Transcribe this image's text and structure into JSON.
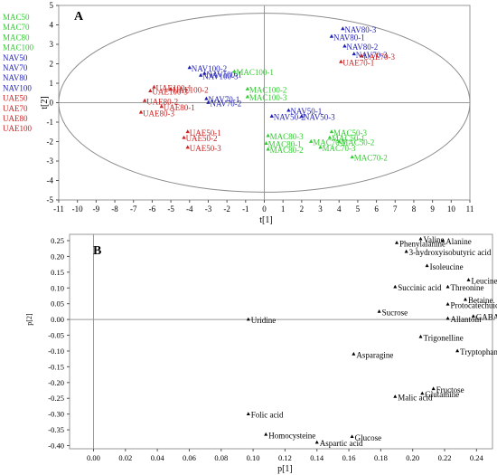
{
  "chart_data": [
    {
      "panel": "A",
      "type": "scatter",
      "xlabel": "t[1]",
      "ylabel": "t[2]",
      "xlim": [
        -11,
        11
      ],
      "ylim": [
        -5,
        5
      ],
      "xticks": [
        -11,
        -10,
        -9,
        -8,
        -7,
        -6,
        -5,
        -4,
        -3,
        -2,
        -1,
        0,
        1,
        2,
        3,
        4,
        5,
        6,
        7,
        8,
        9,
        10,
        11
      ],
      "yticks": [
        -5,
        -4,
        -3,
        -2,
        -1,
        0,
        1,
        2,
        3,
        4,
        5
      ],
      "ellipse": {
        "rx": 11,
        "ry": 4.6
      },
      "legend": [
        {
          "label": "MAC50",
          "color": "#33cc33"
        },
        {
          "label": "MAC70",
          "color": "#33cc33"
        },
        {
          "label": "MAC80",
          "color": "#33cc33"
        },
        {
          "label": "MAC100",
          "color": "#33cc33"
        },
        {
          "label": "NAV50",
          "color": "#1f1fb4"
        },
        {
          "label": "NAV70",
          "color": "#1f1fb4"
        },
        {
          "label": "NAV80",
          "color": "#1f1fb4"
        },
        {
          "label": "NAV100",
          "color": "#1f1fb4"
        },
        {
          "label": "UAE50",
          "color": "#cc2222"
        },
        {
          "label": "UAE70",
          "color": "#cc2222"
        },
        {
          "label": "UAE80",
          "color": "#cc2222"
        },
        {
          "label": "UAE100",
          "color": "#cc2222"
        }
      ],
      "points": [
        {
          "label": "NAV80-3",
          "x": 4.2,
          "y": 3.8,
          "color": "#1f1fb4"
        },
        {
          "label": "NAV80-1",
          "x": 3.6,
          "y": 3.4,
          "color": "#1f1fb4"
        },
        {
          "label": "NAV80-2",
          "x": 4.3,
          "y": 2.9,
          "color": "#1f1fb4"
        },
        {
          "label": "NAV70-3",
          "x": 4.8,
          "y": 2.5,
          "color": "#1f1fb4"
        },
        {
          "label": "UAE70-3",
          "x": 5.2,
          "y": 2.4,
          "color": "#cc2222"
        },
        {
          "label": "UAE70-1",
          "x": 4.1,
          "y": 2.1,
          "color": "#cc2222"
        },
        {
          "label": "NAV100-2",
          "x": -4.0,
          "y": 1.8,
          "color": "#1f1fb4"
        },
        {
          "label": "NAV100-1",
          "x": -3.2,
          "y": 1.5,
          "color": "#1f1fb4"
        },
        {
          "label": "NAV100-3",
          "x": -3.4,
          "y": 1.4,
          "color": "#1f1fb4"
        },
        {
          "label": "MAC100-1",
          "x": -1.6,
          "y": 1.6,
          "color": "#33cc33"
        },
        {
          "label": "UAE100-1",
          "x": -5.9,
          "y": 0.8,
          "color": "#cc2222"
        },
        {
          "label": "UAE100-3",
          "x": -6.1,
          "y": 0.6,
          "color": "#cc2222"
        },
        {
          "label": "UAE100-2",
          "x": -5.0,
          "y": 0.7,
          "color": "#cc2222"
        },
        {
          "label": "MAC100-2",
          "x": -0.9,
          "y": 0.7,
          "color": "#33cc33"
        },
        {
          "label": "MAC100-3",
          "x": -0.9,
          "y": 0.3,
          "color": "#33cc33"
        },
        {
          "label": "NAV70-1",
          "x": -3.1,
          "y": 0.2,
          "color": "#1f1fb4"
        },
        {
          "label": "NAV70-2",
          "x": -3.0,
          "y": 0.0,
          "color": "#1f1fb4"
        },
        {
          "label": "UAE80-2",
          "x": -6.4,
          "y": 0.1,
          "color": "#cc2222"
        },
        {
          "label": "UAE80-1",
          "x": -5.5,
          "y": -0.2,
          "color": "#cc2222"
        },
        {
          "label": "UAE80-3",
          "x": -6.6,
          "y": -0.5,
          "color": "#cc2222"
        },
        {
          "label": "NAV50-1",
          "x": 1.3,
          "y": -0.4,
          "color": "#1f1fb4"
        },
        {
          "label": "NAV50-2",
          "x": 0.4,
          "y": -0.7,
          "color": "#1f1fb4"
        },
        {
          "label": "NAV50-3",
          "x": 2.0,
          "y": -0.7,
          "color": "#1f1fb4"
        },
        {
          "label": "UAE50-1",
          "x": -4.1,
          "y": -1.5,
          "color": "#cc2222"
        },
        {
          "label": "UAE50-2",
          "x": -4.3,
          "y": -1.8,
          "color": "#cc2222"
        },
        {
          "label": "UAE50-3",
          "x": -4.1,
          "y": -2.3,
          "color": "#cc2222"
        },
        {
          "label": "MAC50-3",
          "x": 3.6,
          "y": -1.5,
          "color": "#33cc33"
        },
        {
          "label": "MAC50-1",
          "x": 3.5,
          "y": -1.8,
          "color": "#33cc33"
        },
        {
          "label": "MAC50-2",
          "x": 4.0,
          "y": -2.0,
          "color": "#33cc33"
        },
        {
          "label": "MAC80-3",
          "x": 0.2,
          "y": -1.7,
          "color": "#33cc33"
        },
        {
          "label": "MAC80-1",
          "x": 0.1,
          "y": -2.1,
          "color": "#33cc33"
        },
        {
          "label": "MAC80-2",
          "x": 0.2,
          "y": -2.4,
          "color": "#33cc33"
        },
        {
          "label": "MAC70-1",
          "x": 2.5,
          "y": -2.0,
          "color": "#33cc33"
        },
        {
          "label": "MAC70-3",
          "x": 3.0,
          "y": -2.3,
          "color": "#33cc33"
        },
        {
          "label": "MAC70-2",
          "x": 4.7,
          "y": -2.8,
          "color": "#33cc33"
        }
      ]
    },
    {
      "panel": "B",
      "type": "scatter",
      "xlabel": "p[1]",
      "ylabel": "p[2]",
      "xlim": [
        -0.015,
        0.25
      ],
      "ylim": [
        -0.41,
        0.27
      ],
      "xticks": [
        "0.00",
        "0.02",
        "0.04",
        "0.06",
        "0.08",
        "0.10",
        "0.12",
        "0.14",
        "0.16",
        "0.18",
        "0.20",
        "0.22",
        "0.24"
      ],
      "yticks": [
        "0.25",
        "0.20",
        "0.15",
        "0.10",
        "0.05",
        "0.00",
        "-0.05",
        "-0.10",
        "-0.15",
        "-0.20",
        "-0.25",
        "-0.30",
        "-0.35",
        "-0.40"
      ],
      "points": [
        {
          "label": "Valine",
          "x": 0.205,
          "y": 0.255
        },
        {
          "label": "Alanine",
          "x": 0.219,
          "y": 0.25
        },
        {
          "label": "Phenylalanine",
          "x": 0.19,
          "y": 0.243
        },
        {
          "label": "3-hydroxyisobutyric acid",
          "x": 0.196,
          "y": 0.215
        },
        {
          "label": "Isoleucine",
          "x": 0.209,
          "y": 0.17
        },
        {
          "label": "Leucine",
          "x": 0.235,
          "y": 0.125
        },
        {
          "label": "Threonine",
          "x": 0.222,
          "y": 0.103
        },
        {
          "label": "Succinic acid",
          "x": 0.189,
          "y": 0.103
        },
        {
          "label": "Betaine",
          "x": 0.233,
          "y": 0.063
        },
        {
          "label": "Protocatechuic acid",
          "x": 0.222,
          "y": 0.048
        },
        {
          "label": "Sucrose",
          "x": 0.179,
          "y": 0.025
        },
        {
          "label": "GABA",
          "x": 0.238,
          "y": 0.01
        },
        {
          "label": "Allantoin",
          "x": 0.222,
          "y": 0.003
        },
        {
          "label": "Uridine",
          "x": 0.097,
          "y": 0.0
        },
        {
          "label": "Trigonelline",
          "x": 0.205,
          "y": -0.055
        },
        {
          "label": "Asparagine",
          "x": 0.163,
          "y": -0.11
        },
        {
          "label": "Tryptophan",
          "x": 0.228,
          "y": -0.1
        },
        {
          "label": "Fructose",
          "x": 0.213,
          "y": -0.22
        },
        {
          "label": "Glutamine",
          "x": 0.206,
          "y": -0.235
        },
        {
          "label": "Malic acid",
          "x": 0.189,
          "y": -0.245
        },
        {
          "label": "Folic acid",
          "x": 0.097,
          "y": -0.3
        },
        {
          "label": "Homocysteine",
          "x": 0.108,
          "y": -0.365
        },
        {
          "label": "Glucose",
          "x": 0.162,
          "y": -0.372
        },
        {
          "label": "Aspartic acid",
          "x": 0.14,
          "y": -0.39
        }
      ]
    }
  ]
}
